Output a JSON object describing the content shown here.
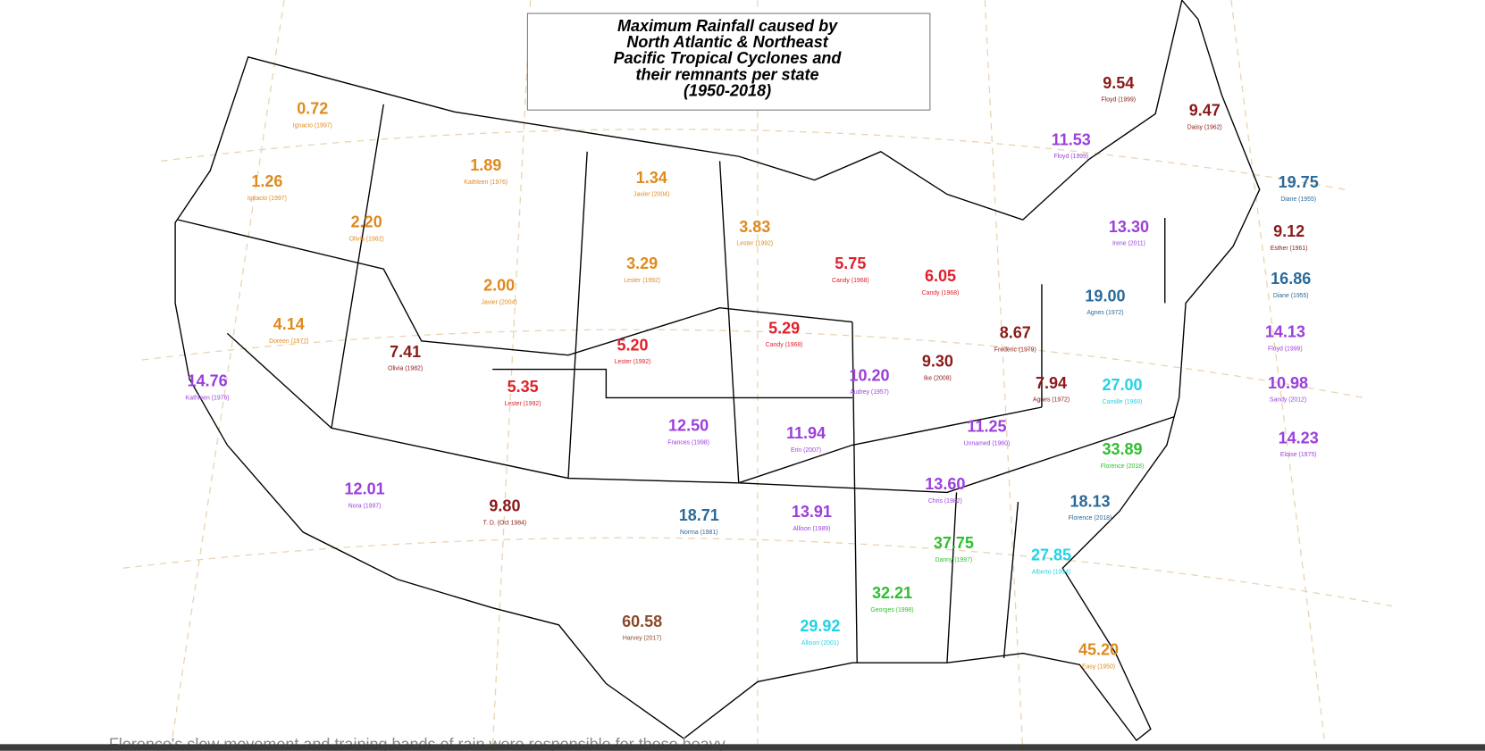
{
  "title": [
    "Maximum Rainfall caused by",
    "North Atlantic & Northeast",
    "Pacific Tropical Cyclones and",
    "their remnants per state",
    "(1950-2018)"
  ],
  "labels": [
    {
      "value": "0.72",
      "storm": "Ignacio (1997)",
      "color": "#e08a1e"
    },
    {
      "value": "1.26",
      "storm": "Ignacio (1997)",
      "color": "#e08a1e"
    },
    {
      "value": "1.89",
      "storm": "Kathleen (1976)",
      "color": "#e08a1e"
    },
    {
      "value": "1.34",
      "storm": "Javier (2004)",
      "color": "#e08a1e"
    },
    {
      "value": "2.20",
      "storm": "Olivia (1982)",
      "color": "#e08a1e"
    },
    {
      "value": "3.83",
      "storm": "Lester (1992)",
      "color": "#e08a1e"
    },
    {
      "value": "3.29",
      "storm": "Lester (1992)",
      "color": "#e08a1e"
    },
    {
      "value": "2.00",
      "storm": "Javier (2004)",
      "color": "#e08a1e"
    },
    {
      "value": "4.14",
      "storm": "Doreen (1977)",
      "color": "#e08a1e"
    },
    {
      "value": "7.41",
      "storm": "Olivia (1982)",
      "color": "#8b1a1a"
    },
    {
      "value": "14.76",
      "storm": "Kathleen (1976)",
      "color": "#9b3fdc"
    },
    {
      "value": "5.35",
      "storm": "Lester (1992)",
      "color": "#e0202a"
    },
    {
      "value": "5.20",
      "storm": "Lester (1992)",
      "color": "#e0202a"
    },
    {
      "value": "5.75",
      "storm": "Candy (1968)",
      "color": "#e0202a"
    },
    {
      "value": "6.05",
      "storm": "Candy (1968)",
      "color": "#e0202a"
    },
    {
      "value": "5.29",
      "storm": "Candy (1968)",
      "color": "#e0202a"
    },
    {
      "value": "9.30",
      "storm": "Ike (2008)",
      "color": "#8b1a1a"
    },
    {
      "value": "8.67",
      "storm": "Frederic (1979)",
      "color": "#8b1a1a"
    },
    {
      "value": "10.20",
      "storm": "Audrey (1957)",
      "color": "#9b3fdc"
    },
    {
      "value": "7.94",
      "storm": "Agnes (1972)",
      "color": "#8b1a1a"
    },
    {
      "value": "27.00",
      "storm": "Camille (1969)",
      "color": "#22d3e6"
    },
    {
      "value": "11.25",
      "storm": "Unnamed (1960)",
      "color": "#9b3fdc"
    },
    {
      "value": "12.50",
      "storm": "Frances (1998)",
      "color": "#9b3fdc"
    },
    {
      "value": "11.94",
      "storm": "Erin (2007)",
      "color": "#9b3fdc"
    },
    {
      "value": "12.01",
      "storm": "Nora (1997)",
      "color": "#9b3fdc"
    },
    {
      "value": "9.80",
      "storm": "T. D. (Oct 1984)",
      "color": "#8b1a1a"
    },
    {
      "value": "18.71",
      "storm": "Norma (1981)",
      "color": "#2a6a9a"
    },
    {
      "value": "13.91",
      "storm": "Allison (1989)",
      "color": "#9b3fdc"
    },
    {
      "value": "13.60",
      "storm": "Chris (1982)",
      "color": "#9b3fdc"
    },
    {
      "value": "33.89",
      "storm": "Florence (2018)",
      "color": "#2ec02e"
    },
    {
      "value": "18.13",
      "storm": "Florence (2018)",
      "color": "#2a6a9a"
    },
    {
      "value": "37.75",
      "storm": "Danny (1997)",
      "color": "#2ec02e"
    },
    {
      "value": "27.85",
      "storm": "Alberto (1994)",
      "color": "#22d3e6"
    },
    {
      "value": "32.21",
      "storm": "Georges (1998)",
      "color": "#2ec02e"
    },
    {
      "value": "29.92",
      "storm": "Allison (2001)",
      "color": "#22d3e6"
    },
    {
      "value": "60.58",
      "storm": "Harvey (2017)",
      "color": "#8b4a2a"
    },
    {
      "value": "45.20",
      "storm": "Easy (1950)",
      "color": "#e08a1e"
    },
    {
      "value": "9.54",
      "storm": "Floyd (1999)",
      "color": "#8b1a1a"
    },
    {
      "value": "9.47",
      "storm": "Daisy (1962)",
      "color": "#8b1a1a"
    },
    {
      "value": "11.53",
      "storm": "Floyd (1999)",
      "color": "#9b3fdc"
    },
    {
      "value": "13.30",
      "storm": "Irene (2011)",
      "color": "#9b3fdc"
    },
    {
      "value": "19.00",
      "storm": "Agnes (1972)",
      "color": "#2a6a9a"
    },
    {
      "value": "19.75",
      "storm": "Diane (1955)",
      "color": "#2a6a9a"
    },
    {
      "value": "9.12",
      "storm": "Esther (1961)",
      "color": "#8b1a1a"
    },
    {
      "value": "16.86",
      "storm": "Diane (1955)",
      "color": "#2a6a9a"
    },
    {
      "value": "14.13",
      "storm": "Floyd (1999)",
      "color": "#9b3fdc"
    },
    {
      "value": "10.98",
      "storm": "Sandy (2012)",
      "color": "#9b3fdc"
    },
    {
      "value": "14.23",
      "storm": "Eloise (1975)",
      "color": "#9b3fdc"
    }
  ],
  "caption": "Florence's slow movement and training bands of rain were responsible for these heavy"
}
